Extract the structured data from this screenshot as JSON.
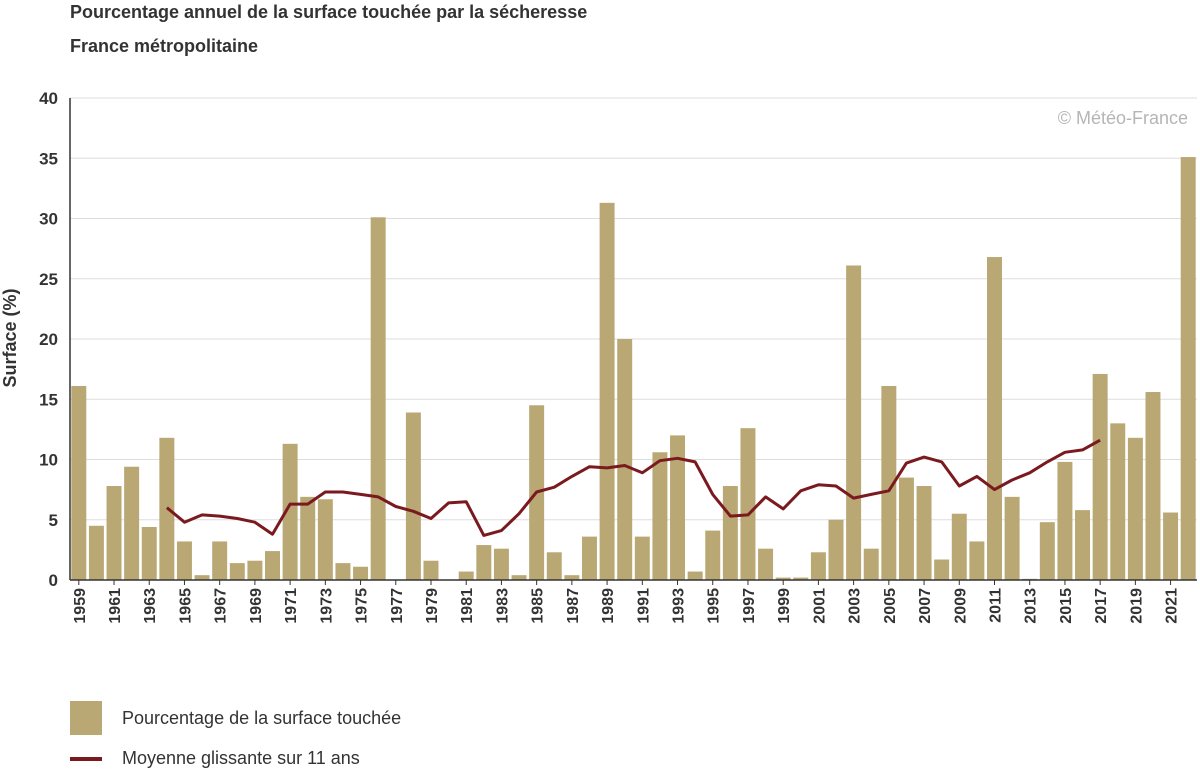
{
  "header": {
    "title": "Pourcentage annuel de la surface touchée par la sécheresse",
    "subtitle": "France métropolitaine"
  },
  "watermark": "© Météo-France",
  "colors": {
    "bar": "#b9a774",
    "line": "#7a1a1f",
    "grid": "#dddddd",
    "axis": "#333333",
    "watermark": "#b5b5b5"
  },
  "legend": {
    "bar_label": "Pourcentage de la surface touchée",
    "line_label": "Moyenne glissante sur 11 ans"
  },
  "chart_data": {
    "type": "bar",
    "ylabel": "Surface (%)",
    "xlabel": "",
    "ylim": [
      0,
      40
    ],
    "yticks": [
      0,
      5,
      10,
      15,
      20,
      25,
      30,
      35,
      40
    ],
    "grid": true,
    "legend_position": "bottom-left",
    "categories": [
      "1959",
      "1960",
      "1961",
      "1962",
      "1963",
      "1964",
      "1965",
      "1966",
      "1967",
      "1968",
      "1969",
      "1970",
      "1971",
      "1972",
      "1973",
      "1974",
      "1975",
      "1976",
      "1977",
      "1978",
      "1979",
      "1980",
      "1981",
      "1982",
      "1983",
      "1984",
      "1985",
      "1986",
      "1987",
      "1988",
      "1989",
      "1990",
      "1991",
      "1992",
      "1993",
      "1994",
      "1995",
      "1996",
      "1997",
      "1998",
      "1999",
      "2000",
      "2001",
      "2002",
      "2003",
      "2004",
      "2005",
      "2006",
      "2007",
      "2008",
      "2009",
      "2010",
      "2011",
      "2012",
      "2013",
      "2014",
      "2015",
      "2016",
      "2017",
      "2018",
      "2019",
      "2020",
      "2021",
      "2022"
    ],
    "x_tick_labels": [
      "1959",
      "1961",
      "1963",
      "1965",
      "1967",
      "1969",
      "1971",
      "1973",
      "1975",
      "1977",
      "1979",
      "1981",
      "1983",
      "1985",
      "1987",
      "1989",
      "1991",
      "1993",
      "1995",
      "1997",
      "1999",
      "2001",
      "2003",
      "2005",
      "2007",
      "2009",
      "2011",
      "2013",
      "2015",
      "2017",
      "2019",
      "2021"
    ],
    "series": [
      {
        "name": "Pourcentage de la surface touchée",
        "type": "bar",
        "values": [
          16.1,
          4.5,
          7.8,
          9.4,
          4.4,
          11.8,
          3.2,
          0.4,
          3.2,
          1.4,
          1.6,
          2.4,
          11.3,
          6.9,
          6.7,
          1.4,
          1.1,
          30.1,
          0.0,
          13.9,
          1.6,
          0.0,
          0.7,
          2.9,
          2.6,
          0.4,
          14.5,
          2.3,
          0.4,
          3.6,
          31.3,
          20.0,
          3.6,
          10.6,
          12.0,
          0.7,
          4.1,
          7.8,
          12.6,
          2.6,
          0.2,
          0.2,
          2.3,
          5.0,
          26.1,
          2.6,
          16.1,
          8.5,
          7.8,
          1.7,
          5.5,
          3.2,
          26.8,
          6.9,
          0.1,
          4.8,
          9.8,
          5.8,
          17.1,
          13.0,
          11.8,
          15.6,
          5.6,
          35.1
        ]
      },
      {
        "name": "Moyenne glissante sur 11 ans",
        "type": "line",
        "x": [
          "1964",
          "1965",
          "1966",
          "1967",
          "1968",
          "1969",
          "1970",
          "1971",
          "1972",
          "1973",
          "1974",
          "1975",
          "1976",
          "1977",
          "1978",
          "1979",
          "1980",
          "1981",
          "1982",
          "1983",
          "1984",
          "1985",
          "1986",
          "1987",
          "1988",
          "1989",
          "1990",
          "1991",
          "1992",
          "1993",
          "1994",
          "1995",
          "1996",
          "1997",
          "1998",
          "1999",
          "2000",
          "2001",
          "2002",
          "2003",
          "2004",
          "2005",
          "2006",
          "2007",
          "2008",
          "2009",
          "2010",
          "2011",
          "2012",
          "2013",
          "2014",
          "2015",
          "2016",
          "2017"
        ],
        "values": [
          6.0,
          4.8,
          5.4,
          5.3,
          5.1,
          4.8,
          3.8,
          6.3,
          6.3,
          7.3,
          7.3,
          7.1,
          6.9,
          6.1,
          5.7,
          5.1,
          6.4,
          6.5,
          3.7,
          4.1,
          5.5,
          7.3,
          7.7,
          8.6,
          9.4,
          9.3,
          9.5,
          8.9,
          9.9,
          10.1,
          9.8,
          7.1,
          5.3,
          5.4,
          6.9,
          5.9,
          7.4,
          7.9,
          7.8,
          6.8,
          7.1,
          7.4,
          9.7,
          10.2,
          9.8,
          7.8,
          8.6,
          7.5,
          8.3,
          8.9,
          9.8,
          10.6,
          10.8,
          11.6
        ]
      }
    ]
  }
}
